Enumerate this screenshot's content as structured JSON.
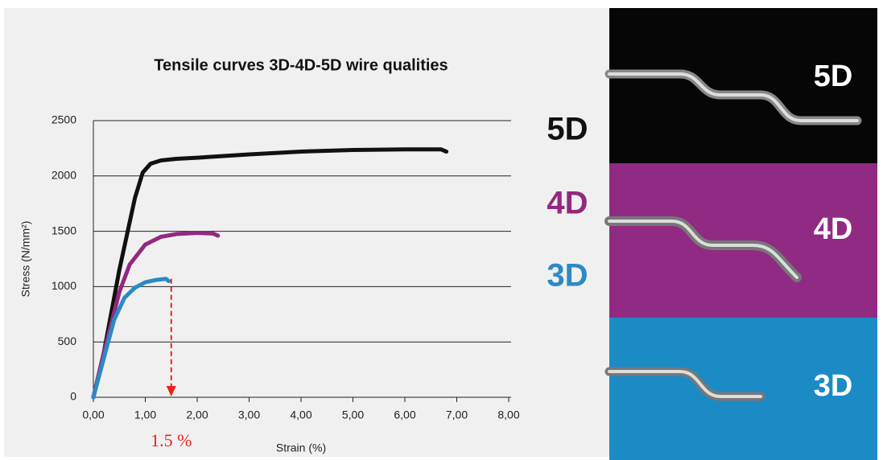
{
  "chart_data": {
    "type": "line",
    "title": "Tensile curves 3D-4D-5D wire qualities",
    "x_label": "Strain (%)",
    "y_label": "Stress (N/mm²)",
    "xlim": [
      0,
      8
    ],
    "ylim": [
      0,
      2500
    ],
    "xticks": [
      {
        "value": 0,
        "label": "0,00"
      },
      {
        "value": 1,
        "label": "1,00"
      },
      {
        "value": 2,
        "label": "2,00"
      },
      {
        "value": 3,
        "label": "3,00"
      },
      {
        "value": 4,
        "label": "4,00"
      },
      {
        "value": 5,
        "label": "5,00"
      },
      {
        "value": 6,
        "label": "6,00"
      },
      {
        "value": 7,
        "label": "7,00"
      },
      {
        "value": 8,
        "label": "8,00"
      }
    ],
    "yticks": [
      0,
      500,
      1000,
      1500,
      2000,
      2500
    ],
    "grid": true,
    "series": [
      {
        "name": "5D",
        "color": "#111111",
        "x": [
          0,
          0.2,
          0.5,
          0.8,
          0.95,
          1.1,
          1.3,
          1.6,
          2,
          3,
          4,
          5,
          6,
          6.7,
          6.8
        ],
        "values": [
          0,
          400,
          1150,
          1800,
          2030,
          2110,
          2140,
          2155,
          2165,
          2195,
          2220,
          2235,
          2240,
          2240,
          2220
        ]
      },
      {
        "name": "4D",
        "color": "#93297f",
        "x": [
          0,
          0.2,
          0.5,
          0.7,
          1.0,
          1.3,
          1.6,
          2,
          2.3,
          2.4
        ],
        "values": [
          0,
          400,
          950,
          1200,
          1380,
          1450,
          1475,
          1485,
          1480,
          1460
        ]
      },
      {
        "name": "3D",
        "color": "#2b8ac6",
        "x": [
          0,
          0.2,
          0.4,
          0.6,
          0.8,
          1.0,
          1.2,
          1.4,
          1.45
        ],
        "values": [
          0,
          350,
          700,
          900,
          990,
          1040,
          1060,
          1070,
          1050
        ]
      }
    ],
    "annotation": {
      "text": "1.5 %",
      "x": 1.5,
      "color": "#e8231d"
    }
  }
}
